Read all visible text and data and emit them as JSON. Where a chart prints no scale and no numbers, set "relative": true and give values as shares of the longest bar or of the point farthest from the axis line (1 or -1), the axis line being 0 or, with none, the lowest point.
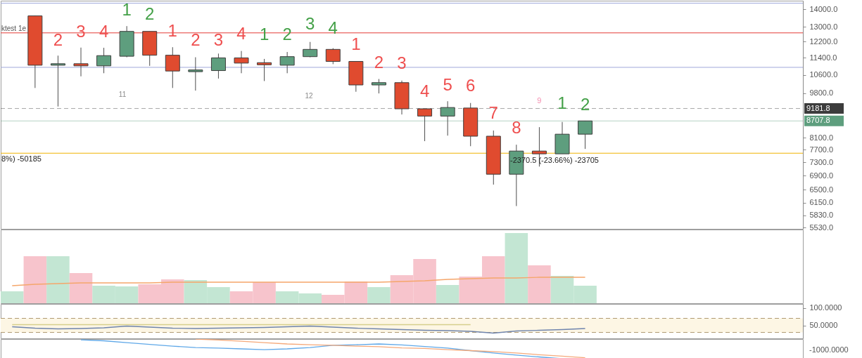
{
  "chart_data": [
    {
      "type": "candlestick",
      "categories": [
        null,
        null,
        null,
        null,
        null,
        null,
        null,
        null,
        null,
        null,
        null,
        null,
        null,
        null,
        null,
        null,
        null,
        null,
        null,
        null,
        null,
        null,
        null,
        null,
        null,
        null,
        null,
        null,
        null,
        null,
        null,
        null,
        null,
        null,
        null
      ],
      "ohlc": [
        null,
        [
          13620,
          13620,
          10020,
          11040
        ],
        [
          11040,
          11500,
          9260,
          11110
        ],
        [
          11110,
          11900,
          10530,
          11010
        ],
        [
          11010,
          11890,
          10670,
          11500
        ],
        [
          11470,
          13040,
          11420,
          12750
        ],
        [
          12750,
          12750,
          11010,
          11520
        ],
        [
          11520,
          11920,
          10020,
          10770
        ],
        [
          10740,
          11420,
          9910,
          10820
        ],
        [
          10790,
          11600,
          10430,
          11390
        ],
        [
          11390,
          11730,
          10670,
          11140
        ],
        [
          11160,
          11340,
          10320,
          11060
        ],
        [
          11040,
          11680,
          10670,
          11450
        ],
        [
          11450,
          12190,
          11420,
          11810
        ],
        [
          11810,
          11870,
          11090,
          11220
        ],
        [
          11220,
          11220,
          9860,
          10150
        ],
        [
          10150,
          10410,
          9790,
          10250
        ],
        [
          10250,
          10340,
          8950,
          9170
        ],
        [
          9170,
          9170,
          7990,
          8890
        ],
        [
          8890,
          9470,
          8180,
          9220
        ],
        [
          9200,
          9400,
          7820,
          8160
        ],
        [
          8160,
          8360,
          6640,
          6940
        ],
        [
          6940,
          7870,
          6060,
          7660
        ],
        [
          7660,
          8480,
          7170,
          7570
        ],
        [
          7570,
          8670,
          7570,
          8230
        ],
        [
          8230,
          8707.8,
          7730,
          8707.8
        ],
        null,
        null,
        null,
        null,
        null,
        null,
        null,
        null,
        null
      ],
      "colors": [
        null,
        "#e04b2f",
        "#5e9e7e",
        "#e04b2f",
        "#5e9e7e",
        "#5e9e7e",
        "#e04b2f",
        "#e04b2f",
        "#5e9e7e",
        "#5e9e7e",
        "#e04b2f",
        "#e04b2f",
        "#5e9e7e",
        "#5e9e7e",
        "#e04b2f",
        "#e04b2f",
        "#5e9e7e",
        "#e04b2f",
        "#e04b2f",
        "#5e9e7e",
        "#e04b2f",
        "#e04b2f",
        "#5e9e7e",
        "#e04b2f",
        "#5e9e7e",
        "#5e9e7e",
        null,
        null,
        null,
        null,
        null,
        null,
        null,
        null,
        null
      ],
      "log": true,
      "ylim": [
        5500,
        14530
      ],
      "yticks": [
        {
          "value": 14000,
          "label": "14000.0"
        },
        {
          "value": 13000,
          "label": "13000.0"
        },
        {
          "value": 12200,
          "label": "12200.0"
        },
        {
          "value": 11400,
          "label": "11400.0"
        },
        {
          "value": 10600,
          "label": "10600.0"
        },
        {
          "value": 9800,
          "label": "9800.0"
        },
        {
          "value": 8100,
          "label": "8100.0"
        },
        {
          "value": 7700,
          "label": "7700.0"
        },
        {
          "value": 7300,
          "label": "7300.0"
        },
        {
          "value": 6900,
          "label": "6900.0"
        },
        {
          "value": 6500,
          "label": "6500.0"
        },
        {
          "value": 6150,
          "label": "6150.0"
        },
        {
          "value": 5830,
          "label": "5830.0"
        },
        {
          "value": 5530,
          "label": "5530.0"
        }
      ],
      "tick_labels": "y",
      "ref_lines": [
        {
          "axis": "y",
          "value": 14380,
          "color": "#9fa8da"
        },
        {
          "axis": "y",
          "value": 12670,
          "color": "#e53935"
        },
        {
          "axis": "y",
          "value": 10940,
          "color": "#9fa8da"
        },
        {
          "axis": "y",
          "value": 7590,
          "color": "#f0b400"
        },
        {
          "axis": "y",
          "value": 9181.8,
          "label": "9181.8",
          "color": "#3c3c3c",
          "line_style": "dashed"
        },
        {
          "axis": "y",
          "value": 8707.8,
          "label": "8707.8",
          "color": "#5e9e7e"
        }
      ],
      "annotations": [
        "ktest 1e",
        "11",
        "12",
        "8%) -50185",
        "-2370.5 (-23.66%) -23705",
        "2",
        "3",
        "4",
        "1",
        "2",
        "1",
        "2",
        "3",
        "4",
        "1",
        "2",
        "3",
        "4",
        "1",
        "2",
        "3",
        "4",
        "5",
        "6",
        "7",
        "8",
        "9",
        "1",
        "2"
      ]
    },
    {
      "type": "bar",
      "relative": true,
      "tick_labels": false,
      "categories": [
        null,
        null,
        null,
        null,
        null,
        null,
        null,
        null,
        null,
        null,
        null,
        null,
        null,
        null,
        null,
        null,
        null,
        null,
        null,
        null,
        null,
        null,
        null,
        null,
        null,
        null,
        null,
        null,
        null,
        null,
        null,
        null,
        null,
        null,
        null
      ],
      "series": [
        {
          "type": "bar",
          "values": [
            0.17,
            0.67,
            0.67,
            0.43,
            0.25,
            0.24,
            0.27,
            0.34,
            0.33,
            0.23,
            0.17,
            0.3,
            0.17,
            0.14,
            0.12,
            0.31,
            0.23,
            0.4,
            0.63,
            0.26,
            0.38,
            0.67,
            1,
            0.54,
            0.39,
            0.25,
            null,
            null,
            null,
            null,
            null,
            null,
            null,
            null,
            null
          ],
          "colors": [
            "#c3e6d3",
            "#f7c4cc",
            "#c3e6d3",
            "#f7c4cc",
            "#c3e6d3",
            "#c3e6d3",
            "#f7c4cc",
            "#f7c4cc",
            "#c3e6d3",
            "#c3e6d3",
            "#f7c4cc",
            "#f7c4cc",
            "#c3e6d3",
            "#c3e6d3",
            "#f7c4cc",
            "#f7c4cc",
            "#c3e6d3",
            "#f7c4cc",
            "#f7c4cc",
            "#c3e6d3",
            "#f7c4cc",
            "#f7c4cc",
            "#c3e6d3",
            "#f7c4cc",
            "#c3e6d3",
            "#c3e6d3",
            null,
            null,
            null,
            null,
            null,
            null,
            null,
            null,
            null
          ]
        },
        {
          "type": "line",
          "color": "#f5a66b",
          "values": [
            0.25,
            0.27,
            0.28,
            0.29,
            0.29,
            0.29,
            0.29,
            0.3,
            0.3,
            0.3,
            0.3,
            0.3,
            0.3,
            0.3,
            0.3,
            0.3,
            0.3,
            0.31,
            0.32,
            0.34,
            0.35,
            0.36,
            0.36,
            0.37,
            0.37,
            0.37,
            null,
            null,
            null,
            null,
            null,
            null,
            null,
            null,
            null
          ]
        }
      ]
    },
    {
      "type": "line",
      "categories": [
        null,
        null,
        null,
        null,
        null,
        null,
        null,
        null,
        null,
        null,
        null,
        null,
        null,
        null,
        null,
        null,
        null,
        null,
        null,
        null,
        null,
        null,
        null,
        null,
        null,
        null,
        null,
        null,
        null,
        null,
        null,
        null,
        null,
        null,
        null
      ],
      "series": [
        {
          "color": "#6f84ad",
          "values": [
            46,
            42,
            40,
            41,
            43,
            48,
            45,
            42,
            41,
            42,
            43,
            44,
            46,
            48,
            45,
            42,
            40,
            38,
            36,
            35,
            33,
            28,
            34,
            36,
            38,
            41,
            null,
            null,
            null,
            null,
            null,
            null,
            null,
            null,
            null
          ]
        },
        {
          "color": "#d6cf8c",
          "values": [
            52,
            52,
            52,
            52,
            52,
            52,
            52,
            52,
            52,
            52,
            52,
            52,
            52,
            52,
            52,
            52,
            52,
            52,
            52,
            52,
            52,
            null,
            null,
            null,
            null,
            null,
            null,
            null,
            null,
            null,
            null,
            null,
            null,
            null,
            null
          ]
        }
      ],
      "ylim": [
        13,
        111
      ],
      "yticks": [
        {
          "value": 100,
          "label": "100.0000"
        },
        {
          "value": 50,
          "label": "50.0000"
        }
      ],
      "tick_labels": "y",
      "ref_lines": [
        {
          "axis": "y",
          "value": 70,
          "color": "#b09a72",
          "line_style": "dashed"
        },
        {
          "axis": "y",
          "value": 30,
          "color": "#b09a72",
          "line_style": "dashed"
        }
      ],
      "bands": [
        {
          "axis": "y",
          "from": 30,
          "to": 70,
          "color": "#fdf6e4"
        }
      ]
    },
    {
      "type": "line",
      "relative": true,
      "tick_labels": false,
      "categories": [
        null,
        null,
        null,
        null,
        null,
        null,
        null,
        null,
        null,
        null,
        null,
        null,
        null,
        null,
        null,
        null,
        null,
        null,
        null,
        null,
        null,
        null,
        null,
        null,
        null,
        null,
        null,
        null,
        null,
        null,
        null,
        null,
        null,
        null,
        null
      ],
      "series": [
        {
          "color": "#5fa8e8",
          "values": [
            null,
            null,
            null,
            0.96,
            0.91,
            0.82,
            0.73,
            0.64,
            0.57,
            0.54,
            0.5,
            0.46,
            0.5,
            0.57,
            0.68,
            0.71,
            0.75,
            0.7,
            0.62,
            0.54,
            0.41,
            0.29,
            0.18,
            0.09,
            0,
            null,
            null,
            null,
            null,
            null,
            null,
            null,
            null,
            null,
            null
          ]
        },
        {
          "color": "#f5a97a",
          "values": [
            null,
            null,
            null,
            null,
            null,
            null,
            null,
            null,
            1,
            0.95,
            0.89,
            0.82,
            0.75,
            0.71,
            0.68,
            0.64,
            0.61,
            0.55,
            0.52,
            0.46,
            0.41,
            0.36,
            0.29,
            0.2,
            0.13,
            0.05,
            null,
            null,
            null,
            null,
            null,
            null,
            null,
            null,
            null
          ]
        }
      ],
      "annotations": [
        "-1000.0000"
      ]
    }
  ]
}
